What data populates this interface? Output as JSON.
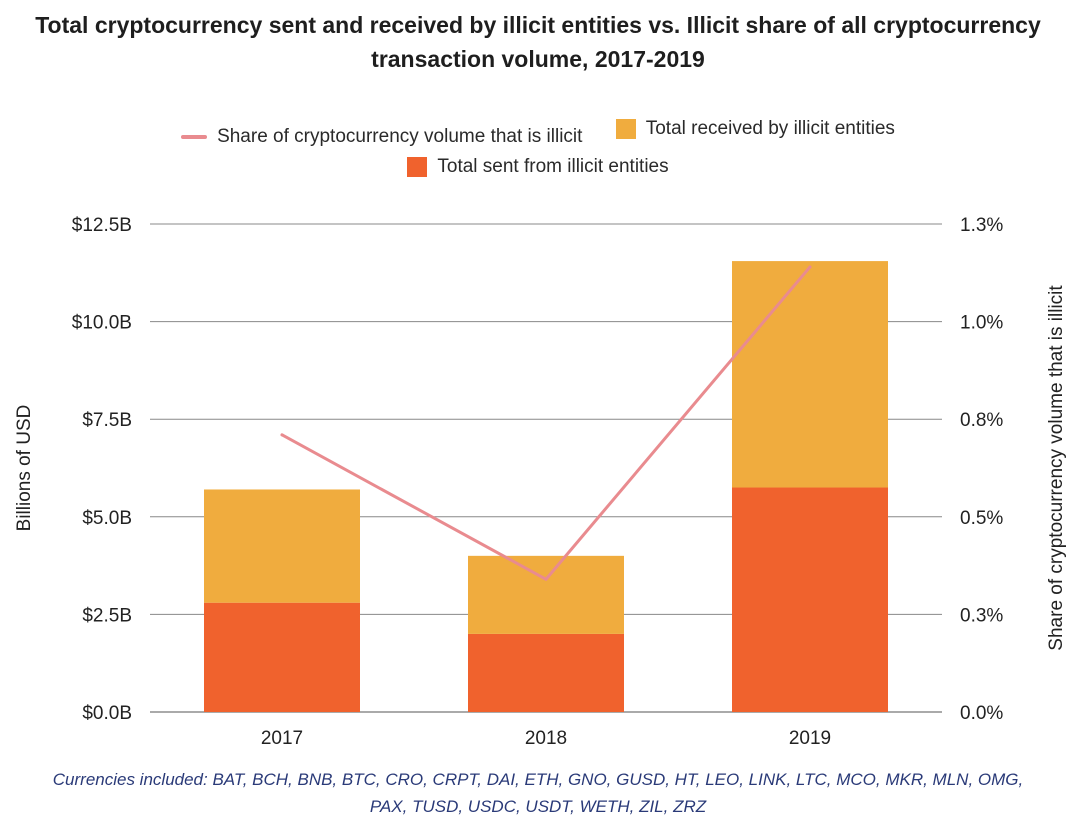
{
  "chart_data": {
    "type": "bar",
    "title": "Total cryptocurrency sent and received by illicit entities vs. Illicit share of all cryptocurrency transaction volume, 2017-2019",
    "categories": [
      "2017",
      "2018",
      "2019"
    ],
    "series": [
      {
        "name": "Total sent from illicit entities",
        "kind": "stacked-bar",
        "axis": "left",
        "color": "#f0622d",
        "values": [
          2.8,
          2.0,
          5.75
        ]
      },
      {
        "name": "Total received by illicit entities",
        "kind": "stacked-bar",
        "axis": "left",
        "color": "#f0ac3e",
        "values": [
          2.9,
          2.0,
          5.8
        ]
      },
      {
        "name": "Share of cryptocurrency volume that is illicit",
        "kind": "line",
        "axis": "right",
        "color": "#e98b8f",
        "values": [
          0.71,
          0.34,
          1.14
        ]
      }
    ],
    "ylabel": "Billions of USD",
    "y2label": "Share of cryptocurrency volume that is illicit",
    "ylim": [
      0,
      12.5
    ],
    "y2lim": [
      0,
      1.25
    ],
    "yticks": [
      "$0.0B",
      "$2.5B",
      "$5.0B",
      "$7.5B",
      "$10.0B",
      "$12.5B"
    ],
    "y2ticks": [
      "0.0%",
      "0.3%",
      "0.5%",
      "0.8%",
      "1.0%",
      "1.3%"
    ],
    "legend": {
      "row1": [
        "Share of cryptocurrency volume that is illicit",
        "Total received by illicit entities"
      ],
      "row2": [
        "Total sent from illicit entities"
      ]
    },
    "footnote": "Currencies included: BAT, BCH, BNB, BTC, CRO, CRPT, DAI, ETH, GNO, GUSD, HT, LEO, LINK, LTC, MCO, MKR, MLN, OMG, PAX, TUSD, USDC, USDT, WETH, ZIL, ZRZ"
  }
}
